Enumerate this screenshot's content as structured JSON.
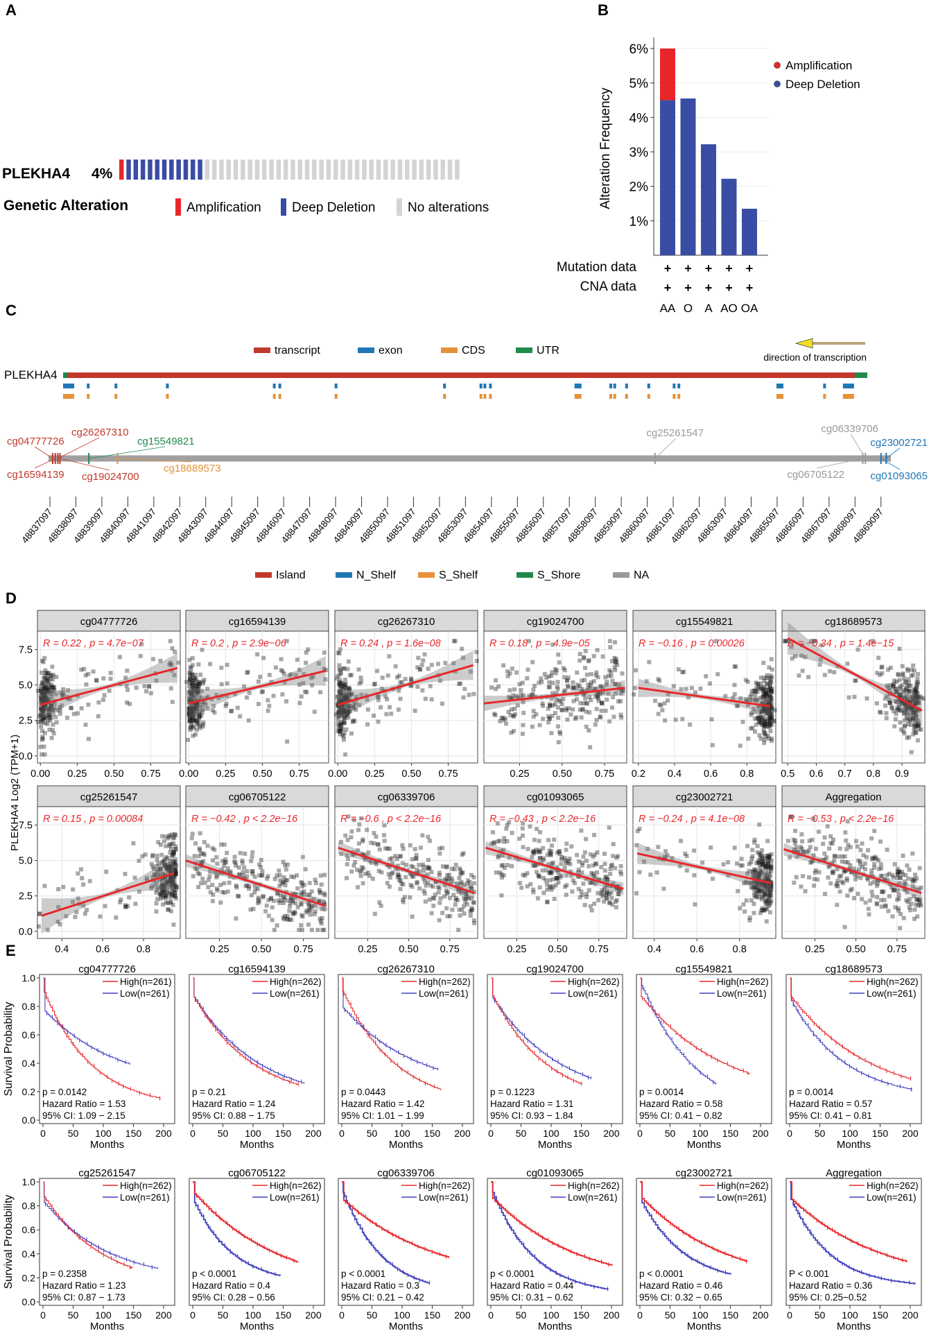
{
  "panel_labels": [
    "A",
    "B",
    "C",
    "D",
    "E"
  ],
  "oncoprint": {
    "gene": "PLEKHA4",
    "percent": "4%",
    "legend_title": "Genetic Alteration",
    "legend": [
      "Amplification",
      "Deep Deletion",
      "No alterations"
    ],
    "counts": {
      "amplification": 1,
      "deep_deletion": 11,
      "no_alterations": 36
    },
    "colors": {
      "amplification": "#e8262a",
      "deep_deletion": "#3a4da5",
      "no_alterations": "#d4d4d4"
    }
  },
  "colors": {
    "red": "#e8262a",
    "blue": "#3a4da5",
    "methyl_red": "#c0392b",
    "methyl_blue": "#1f77b4",
    "orange": "#e69138",
    "green": "#1f8a4c",
    "gray": "#999999",
    "km_blue": "#4040c0"
  },
  "chart_data": [
    {
      "id": "B",
      "type": "bar",
      "ylabel": "Alteration Frequency",
      "ylim": [
        0,
        6.2
      ],
      "yticks": [
        "1%",
        "2%",
        "3%",
        "4%",
        "5%",
        "6%"
      ],
      "categories": [
        "AA",
        "O",
        "A",
        "AO",
        "OA"
      ],
      "series": [
        {
          "name": "Deep Deletion",
          "values": [
            4.5,
            4.55,
            3.22,
            2.22,
            1.35
          ]
        },
        {
          "name": "Amplification",
          "values": [
            1.5,
            0,
            0,
            0,
            0
          ]
        }
      ],
      "legend": [
        "Amplification",
        "Deep Deletion"
      ],
      "row_labels": [
        "Mutation data",
        "CNA data"
      ],
      "row_marks": [
        [
          "+",
          "+",
          "+",
          "+",
          "+"
        ],
        [
          "+",
          "+",
          "+",
          "+",
          "+"
        ]
      ]
    },
    {
      "id": "C",
      "type": "gene_track",
      "gene": "PLEKHA4",
      "feature_legend": [
        "transcript",
        "exon",
        "CDS",
        "UTR"
      ],
      "direction_label": "direction of transcription",
      "exon_positions": [
        0.0,
        0.03,
        0.065,
        0.13,
        0.265,
        0.272,
        0.343,
        0.48,
        0.526,
        0.531,
        0.538,
        0.646,
        0.69,
        0.695,
        0.71,
        0.738,
        0.77,
        0.776,
        0.901,
        0.96,
        0.985
      ],
      "probes": [
        {
          "id": "cg04777726",
          "pos": 48837204,
          "group": "Island"
        },
        {
          "id": "cg16594139",
          "pos": 48837304,
          "group": "Island"
        },
        {
          "id": "cg26267310",
          "pos": 48837404,
          "group": "Island"
        },
        {
          "id": "cg19024700",
          "pos": 48837484,
          "group": "Island"
        },
        {
          "id": "cg15549821",
          "pos": 48838597,
          "group": "S_Shore"
        },
        {
          "id": "cg18689573",
          "pos": 48839697,
          "group": "S_Shelf"
        },
        {
          "id": "cg25261547",
          "pos": 48860397,
          "group": "NA"
        },
        {
          "id": "cg06705122",
          "pos": 48868397,
          "group": "NA"
        },
        {
          "id": "cg06339706",
          "pos": 48868497,
          "group": "NA"
        },
        {
          "id": "cg01093065",
          "pos": 48869097,
          "group": "N_Shelf"
        },
        {
          "id": "cg23002721",
          "pos": 48869297,
          "group": "N_Shelf"
        }
      ],
      "axis_ticks": [
        "48837097",
        "48838097",
        "48839097",
        "48840097",
        "48841097",
        "48842097",
        "48843097",
        "48844097",
        "48845097",
        "48846097",
        "48847097",
        "48848097",
        "48849097",
        "48850097",
        "48851097",
        "48852097",
        "48853097",
        "48854097",
        "48855097",
        "48856097",
        "48857097",
        "48858097",
        "48859097",
        "48860097",
        "48861097",
        "48862097",
        "48863097",
        "48864097",
        "48865097",
        "48866097",
        "48867097",
        "48868097",
        "48869097"
      ],
      "axis_range": [
        48837097,
        48869397
      ],
      "region_legend": [
        "Island",
        "N_Shelf",
        "S_Shelf",
        "S_Shore",
        "NA"
      ]
    },
    {
      "id": "D",
      "type": "scatter",
      "ylabel": "PLEKHA4 Log2 (TPM+1)",
      "yticks": [
        "0.0",
        "2.5",
        "5.0",
        "7.5"
      ],
      "ylim": [
        -0.5,
        8.8
      ],
      "facets": [
        {
          "title": "cg04777726",
          "r_label": "R = 0.22 , p = 4.7e−07",
          "r": 0.22,
          "xlim": [
            -0.02,
            0.95
          ],
          "xticks": [
            "0.00",
            "0.25",
            "0.50",
            "0.75"
          ],
          "tick_values": [
            0,
            0.25,
            0.5,
            0.75
          ],
          "dist": "low",
          "line": [
            0.0,
            3.6,
            0.93,
            6.2
          ],
          "se": 0.9
        },
        {
          "title": "cg16594139",
          "r_label": "R = 0.2 , p = 2.9e−06",
          "r": 0.2,
          "xlim": [
            -0.02,
            0.95
          ],
          "xticks": [
            "0.00",
            "0.25",
            "0.50",
            "0.75"
          ],
          "tick_values": [
            0,
            0.25,
            0.5,
            0.75
          ],
          "dist": "low",
          "line": [
            0.0,
            3.7,
            0.93,
            6.0
          ],
          "se": 0.9
        },
        {
          "title": "cg26267310",
          "r_label": "R = 0.24 , p = 1.6e−08",
          "r": 0.24,
          "xlim": [
            -0.02,
            0.95
          ],
          "xticks": [
            "0.00",
            "0.25",
            "0.50",
            "0.75"
          ],
          "tick_values": [
            0,
            0.25,
            0.5,
            0.75
          ],
          "dist": "low",
          "line": [
            0.0,
            3.6,
            0.92,
            6.4
          ],
          "se": 0.9
        },
        {
          "title": "cg19024700",
          "r_label": "R = 0.18 , p = 4.9e−05",
          "r": 0.18,
          "xlim": [
            0.04,
            0.88
          ],
          "xticks": [
            "0.25",
            "0.50",
            "0.75"
          ],
          "tick_values": [
            0.25,
            0.5,
            0.75
          ],
          "dist": "uniform",
          "line": [
            0.04,
            3.7,
            0.87,
            4.8
          ],
          "se": 0.4
        },
        {
          "title": "cg15549821",
          "r_label": "R = −0.16 , p = 0.00026",
          "r": -0.16,
          "xlim": [
            0.17,
            0.96
          ],
          "xticks": [
            "0.2",
            "0.4",
            "0.6",
            "0.8"
          ],
          "tick_values": [
            0.2,
            0.4,
            0.6,
            0.8
          ],
          "dist": "high",
          "line": [
            0.2,
            4.8,
            0.93,
            3.5
          ],
          "se": 0.5
        },
        {
          "title": "cg18689573",
          "r_label": "R = −0.34 , p = 1.4e−15",
          "r": -0.34,
          "xlim": [
            0.48,
            0.98
          ],
          "xticks": [
            "0.5",
            "0.6",
            "0.7",
            "0.8",
            "0.9"
          ],
          "tick_values": [
            0.5,
            0.6,
            0.7,
            0.8,
            0.9
          ],
          "dist": "high",
          "line": [
            0.5,
            8.3,
            0.97,
            3.2
          ],
          "se": 1.0
        },
        {
          "title": "cg25261547",
          "r_label": "R = 0.15 , p = 0.00084",
          "r": 0.15,
          "xlim": [
            0.28,
            0.98
          ],
          "xticks": [
            "0.4",
            "0.6",
            "0.8"
          ],
          "tick_values": [
            0.4,
            0.6,
            0.8
          ],
          "dist": "high",
          "line": [
            0.3,
            1.1,
            0.95,
            4.1
          ],
          "se": 1.1
        },
        {
          "title": "cg06705122",
          "r_label": "R = −0.42 , p < 2.2e−16",
          "r": -0.42,
          "xlim": [
            0.05,
            0.9
          ],
          "xticks": [
            "0.25",
            "0.50",
            "0.75"
          ],
          "tick_values": [
            0.25,
            0.5,
            0.75
          ],
          "dist": "uniform",
          "line": [
            0.05,
            5.0,
            0.88,
            1.8
          ],
          "se": 0.3
        },
        {
          "title": "cg06339706",
          "r_label": "R = −0.6 , p < 2.2e−16",
          "r": -0.6,
          "xlim": [
            0.05,
            0.92
          ],
          "xticks": [
            "0.25",
            "0.50",
            "0.75"
          ],
          "tick_values": [
            0.25,
            0.5,
            0.75
          ],
          "dist": "uniform",
          "line": [
            0.07,
            5.9,
            0.9,
            2.7
          ],
          "se": 0.3
        },
        {
          "title": "cg01093065",
          "r_label": "R = −0.43 , p < 2.2e−16",
          "r": -0.43,
          "xlim": [
            0.05,
            0.92
          ],
          "xticks": [
            "0.25",
            "0.50",
            "0.75"
          ],
          "tick_values": [
            0.25,
            0.5,
            0.75
          ],
          "dist": "uniform",
          "line": [
            0.06,
            5.9,
            0.9,
            3.0
          ],
          "se": 0.3
        },
        {
          "title": "cg23002721",
          "r_label": "R = −0.24 , p = 4.1e−08",
          "r": -0.24,
          "xlim": [
            0.3,
            0.97
          ],
          "xticks": [
            "0.4",
            "0.6",
            "0.8"
          ],
          "tick_values": [
            0.4,
            0.6,
            0.8
          ],
          "dist": "high",
          "line": [
            0.32,
            5.5,
            0.95,
            3.4
          ],
          "se": 0.6
        },
        {
          "title": "Aggregation",
          "r_label": "R = −0.53 , p < 2.2e−16",
          "r": -0.53,
          "xlim": [
            0.05,
            0.92
          ],
          "xticks": [
            "0.25",
            "0.50",
            "0.75"
          ],
          "tick_values": [
            0.25,
            0.5,
            0.75
          ],
          "dist": "uniform",
          "line": [
            0.06,
            5.8,
            0.9,
            2.7
          ],
          "se": 0.3
        }
      ]
    },
    {
      "id": "E",
      "type": "line",
      "subtype": "kaplan-meier",
      "xlabel": "Months",
      "ylabel": "Survival Probability",
      "xticks": [
        "0",
        "50",
        "100",
        "150",
        "200"
      ],
      "yticks": [
        "0.0",
        "0.2",
        "0.4",
        "0.6",
        "0.8",
        "1.0"
      ],
      "xlim": [
        0,
        215
      ],
      "ylim": [
        0,
        1.0
      ],
      "panels": [
        {
          "title": "cg04777726",
          "high": "High(n=261)",
          "low": "Low(n=261)",
          "p": "p = 0.0142",
          "hr": "Hazard Ratio = 1.53",
          "ci": "95% CI: 1.09 − 2.15",
          "high_med": 55,
          "high_max": 195,
          "high_floor": 0.08,
          "low_med": 85,
          "low_max": 145,
          "low_floor": 0.22
        },
        {
          "title": "cg16594139",
          "high": "High(n=262)",
          "low": "Low(n=261)",
          "p": "p = 0.21",
          "hr": "Hazard Ratio = 1.24",
          "ci": "95% CI: 0.88 − 1.75",
          "high_med": 68,
          "high_max": 175,
          "high_floor": 0.12,
          "low_med": 75,
          "low_max": 185,
          "low_floor": 0.12
        },
        {
          "title": "cg26267310",
          "high": "High(n=262)",
          "low": "Low(n=261)",
          "p": "p = 0.0443",
          "hr": "Hazard Ratio = 1.42",
          "ci": "95% CI: 1.01 − 1.99",
          "high_med": 62,
          "high_max": 165,
          "high_floor": 0.08,
          "low_med": 82,
          "low_max": 158,
          "low_floor": 0.2
        },
        {
          "title": "cg19024700",
          "high": "High(n=262)",
          "low": "Low(n=261)",
          "p": "p = 0.1223",
          "hr": "Hazard Ratio = 1.31",
          "ci": "95% CI: 0.93 − 1.84",
          "high_med": 63,
          "high_max": 150,
          "high_floor": 0.1,
          "low_med": 78,
          "low_max": 165,
          "low_floor": 0.12
        },
        {
          "title": "cg15549821",
          "high": "High(n=262)",
          "low": "Low(n=261)",
          "p": "p = 0.0014",
          "hr": "Hazard Ratio = 0.58",
          "ci": "95% CI: 0.41 − 0.82",
          "high_med": 96,
          "high_max": 178,
          "high_floor": 0.12,
          "low_med": 62,
          "low_max": 125,
          "low_floor": 0.02
        },
        {
          "title": "cg18689573",
          "high": "High(n=262)",
          "low": "Low(n=261)",
          "p": "p = 0.0014",
          "hr": "Hazard Ratio = 0.57",
          "ci": "95% CI: 0.41 − 0.81",
          "high_med": 92,
          "high_max": 200,
          "high_floor": 0.12,
          "low_med": 62,
          "low_max": 200,
          "low_floor": 0.14
        },
        {
          "title": "cg25261547",
          "high": "High(n=262)",
          "low": "Low(n=261)",
          "p": "p = 0.2358",
          "hr": "Hazard Ratio = 1.23",
          "ci": "95% CI: 0.87 − 1.73",
          "high_med": 68,
          "high_max": 145,
          "high_floor": 0.11,
          "low_med": 75,
          "low_max": 190,
          "low_floor": 0.16
        },
        {
          "title": "cg06705122",
          "high": "High(n=262)",
          "low": "Low(n=261)",
          "p": "p < 0.0001",
          "hr": "Hazard Ratio = 0.4",
          "ci": "95% CI: 0.28 − 0.56",
          "high_med": 100,
          "high_max": 175,
          "high_floor": 0.08,
          "low_med": 45,
          "low_max": 145,
          "low_floor": 0.14
        },
        {
          "title": "cg06339706",
          "high": "High(n=262)",
          "low": "Low(n=261)",
          "p": "p < 0.0001",
          "hr": "Hazard Ratio = 0.3",
          "ci": "95% CI: 0.21 − 0.42",
          "high_med": 108,
          "high_max": 178,
          "high_floor": 0.14,
          "low_med": 45,
          "low_max": 145,
          "low_floor": 0.06
        },
        {
          "title": "cg01093065",
          "high": "High(n=262)",
          "low": "Low(n=261)",
          "p": "p < 0.0001",
          "hr": "Hazard Ratio = 0.44",
          "ci": "95% CI: 0.31 − 0.62",
          "high_med": 98,
          "high_max": 200,
          "high_floor": 0.12,
          "low_med": 48,
          "low_max": 195,
          "low_floor": 0.05
        },
        {
          "title": "cg23002721",
          "high": "High(n=262)",
          "low": "Low(n=261)",
          "p": "p < 0.0001",
          "hr": "Hazard Ratio = 0.46",
          "ci": "95% CI: 0.32 − 0.65",
          "high_med": 98,
          "high_max": 175,
          "high_floor": 0.12,
          "low_med": 50,
          "low_max": 150,
          "low_floor": 0.14
        },
        {
          "title": "Aggregation",
          "high": "High(n=262)",
          "low": "Low(n=261)",
          "p": "P < 0.001",
          "hr": "Hazard Ratio = 0.36",
          "ci": "95% CI: 0.25−0.52",
          "high_med": 105,
          "high_max": 195,
          "high_floor": 0.13,
          "low_med": 45,
          "low_max": 205,
          "low_floor": 0.12
        }
      ]
    }
  ]
}
